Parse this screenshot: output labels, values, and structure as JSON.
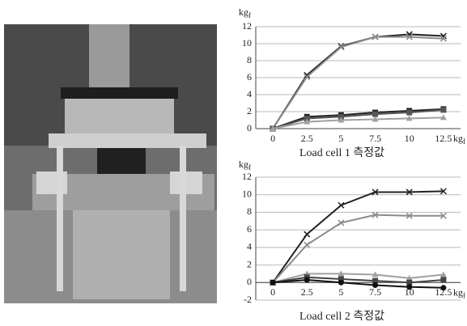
{
  "chart_data": [
    {
      "type": "line",
      "title": "Load cell 1 측정값",
      "ylabel": "kg",
      "ylabel_subscript": "f",
      "xlabel": "kg",
      "xlabel_subscript": "f",
      "categories": [
        "0",
        "2.5",
        "5",
        "7.5",
        "10",
        "12.5"
      ],
      "ylim": [
        0,
        12
      ],
      "yticks": [
        0,
        2,
        4,
        6,
        8,
        10,
        12
      ],
      "grid": true,
      "series": [
        {
          "color": "#222222",
          "marker": "x",
          "values": [
            0,
            6.3,
            9.7,
            10.8,
            11.1,
            10.9
          ]
        },
        {
          "color": "#8a8a8a",
          "marker": "x",
          "values": [
            0,
            6.1,
            9.6,
            10.8,
            10.8,
            10.6
          ]
        },
        {
          "color": "#222222",
          "marker": "square",
          "values": [
            0,
            1.4,
            1.6,
            1.9,
            2.1,
            2.3
          ]
        },
        {
          "color": "#555555",
          "marker": "square",
          "values": [
            0,
            1.2,
            1.4,
            1.7,
            1.9,
            2.2
          ]
        },
        {
          "color": "#a0a0a0",
          "marker": "triangle",
          "values": [
            0,
            0.8,
            1.0,
            1.1,
            1.2,
            1.3
          ]
        }
      ]
    },
    {
      "type": "line",
      "title": "Load cell 2 측정값",
      "ylabel": "kg",
      "ylabel_subscript": "f",
      "xlabel": "kg",
      "xlabel_subscript": "f",
      "categories": [
        "0",
        "2.5",
        "5",
        "7.5",
        "10",
        "12.5"
      ],
      "ylim": [
        -2,
        12
      ],
      "yticks": [
        -2,
        0,
        2,
        4,
        6,
        8,
        10,
        12
      ],
      "grid": true,
      "series": [
        {
          "color": "#222222",
          "marker": "x",
          "values": [
            0,
            5.5,
            8.8,
            10.3,
            10.3,
            10.4
          ]
        },
        {
          "color": "#8a8a8a",
          "marker": "x",
          "values": [
            0,
            4.3,
            6.8,
            7.7,
            7.6,
            7.6
          ]
        },
        {
          "color": "#a0a0a0",
          "marker": "triangle",
          "values": [
            0,
            1.0,
            1.0,
            0.9,
            0.5,
            0.9
          ]
        },
        {
          "color": "#444444",
          "marker": "square",
          "values": [
            0,
            0.6,
            0.4,
            0.2,
            0.0,
            0.3
          ]
        },
        {
          "color": "#111111",
          "marker": "dot",
          "values": [
            0,
            0.3,
            0.0,
            -0.3,
            -0.5,
            -0.6
          ]
        }
      ]
    }
  ]
}
